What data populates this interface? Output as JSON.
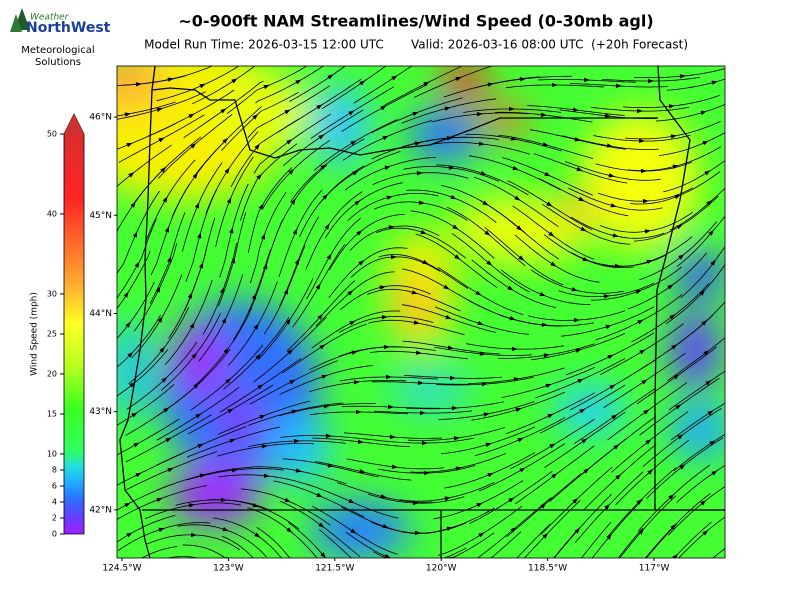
{
  "header": {
    "title": "~0-900ft NAM Streamlines/Wind Speed (0-30mb agl)",
    "model_run": "Model Run Time: 2026-03-15 12:00 UTC",
    "valid": "Valid: 2026-03-16 08:00 UTC  (+20h Forecast)"
  },
  "logo": {
    "brand_top": "Weather",
    "brand_main": "NorthWest",
    "tagline": [
      "Meteorological",
      "Solutions"
    ]
  },
  "colorbar": {
    "label": "Wind Speed (mph)",
    "range": [
      0,
      50
    ],
    "ticks": [
      0,
      2,
      4,
      6,
      8,
      10,
      15,
      20,
      25,
      30,
      40,
      50
    ]
  },
  "map": {
    "xlim": [
      -124.57,
      -116.0
    ],
    "ylim": [
      41.51,
      46.52
    ],
    "xticks": [
      {
        "value": -124.5,
        "label": "124.5°W"
      },
      {
        "value": -123,
        "label": "123°W"
      },
      {
        "value": -121.5,
        "label": "121.5°W"
      },
      {
        "value": -120,
        "label": "120°W"
      },
      {
        "value": -118.5,
        "label": "118.5°W"
      },
      {
        "value": -117,
        "label": "117°W"
      }
    ],
    "yticks": [
      {
        "value": 42,
        "label": "42°N"
      },
      {
        "value": 43,
        "label": "43°N"
      },
      {
        "value": 44,
        "label": "44°N"
      },
      {
        "value": 45,
        "label": "45°N"
      },
      {
        "value": 46,
        "label": "46°N"
      }
    ]
  }
}
